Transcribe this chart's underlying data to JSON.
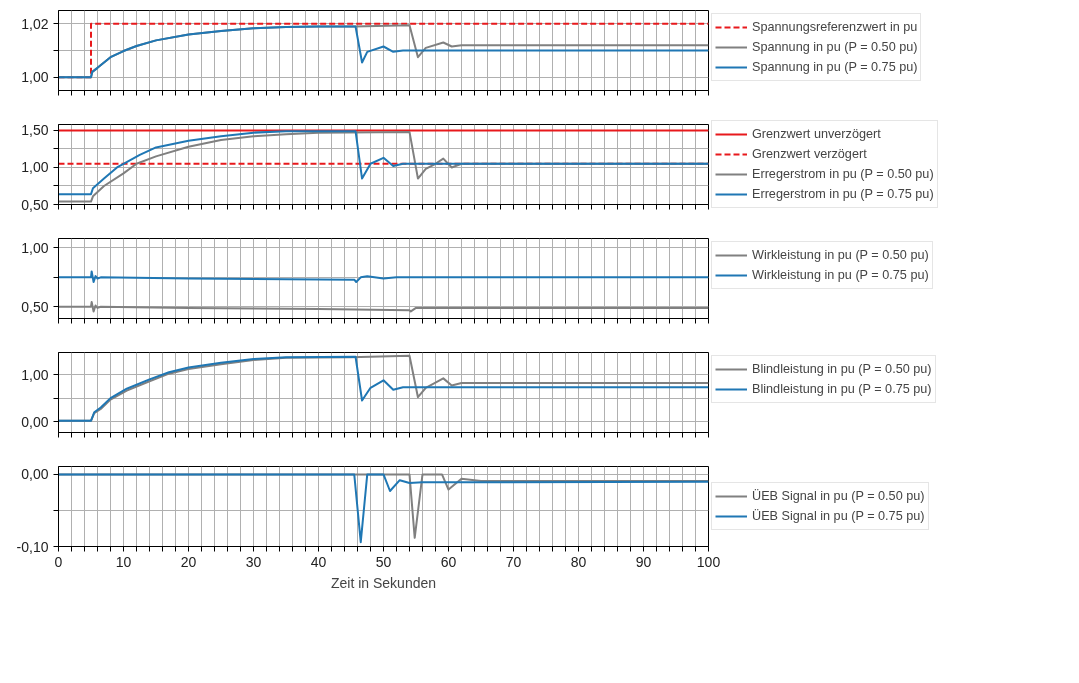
{
  "chart_data": [
    {
      "type": "line",
      "xlim": [
        0,
        100
      ],
      "ylim": [
        0.995,
        1.025
      ],
      "yticks": [
        {
          "value": 1.0,
          "label": "1,00"
        },
        {
          "value": 1.01,
          "label": null
        },
        {
          "value": 1.02,
          "label": "1,02"
        }
      ],
      "xticks": [
        0,
        {
          "value": 2,
          "label": null
        },
        {
          "value": 4,
          "label": null
        },
        {
          "value": 6,
          "label": null
        },
        {
          "value": 8,
          "label": null
        },
        10,
        {
          "value": 12,
          "label": null
        },
        {
          "value": 14,
          "label": null
        },
        {
          "value": 16,
          "label": null
        },
        {
          "value": 18,
          "label": null
        },
        20,
        {
          "value": 22,
          "label": null
        },
        {
          "value": 24,
          "label": null
        },
        {
          "value": 26,
          "label": null
        },
        {
          "value": 28,
          "label": null
        },
        30,
        {
          "value": 32,
          "label": null
        },
        {
          "value": 34,
          "label": null
        },
        {
          "value": 36,
          "label": null
        },
        {
          "value": 38,
          "label": null
        },
        40,
        {
          "value": 42,
          "label": null
        },
        {
          "value": 44,
          "label": null
        },
        {
          "value": 46,
          "label": null
        },
        {
          "value": 48,
          "label": null
        },
        50,
        {
          "value": 52,
          "label": null
        },
        {
          "value": 54,
          "label": null
        },
        {
          "value": 56,
          "label": null
        },
        {
          "value": 58,
          "label": null
        },
        60,
        {
          "value": 62,
          "label": null
        },
        {
          "value": 64,
          "label": null
        },
        {
          "value": 66,
          "label": null
        },
        {
          "value": 68,
          "label": null
        },
        70,
        {
          "value": 72,
          "label": null
        },
        {
          "value": 74,
          "label": null
        },
        {
          "value": 76,
          "label": null
        },
        {
          "value": 78,
          "label": null
        },
        80,
        {
          "value": 82,
          "label": null
        },
        {
          "value": 84,
          "label": null
        },
        {
          "value": 86,
          "label": null
        },
        {
          "value": 88,
          "label": null
        },
        90,
        {
          "value": 92,
          "label": null
        },
        {
          "value": 94,
          "label": null
        },
        {
          "value": 96,
          "label": null
        },
        {
          "value": 98,
          "label": null
        },
        100
      ],
      "tick_labels": "y",
      "grid": true,
      "legend": "top right",
      "series": [
        {
          "name": "Spannungsreferenzwert in pu",
          "color": "#e8191c",
          "line_style": "dashed",
          "x": [
            0,
            5,
            5,
            100
          ],
          "values": [
            1.0,
            1.0,
            1.02,
            1.02
          ]
        },
        {
          "name": "Spannung in pu (P = 0.50 pu)",
          "color": "#808080",
          "x": [
            0,
            5,
            5.2,
            6,
            8,
            10,
            12,
            15,
            20,
            25,
            30,
            35,
            40,
            45.5,
            54,
            55.3,
            56.5,
            59.2,
            60.5,
            62,
            100
          ],
          "values": [
            1.0,
            1.0,
            1.002,
            1.0035,
            1.0075,
            1.0098,
            1.0117,
            1.0138,
            1.016,
            1.0173,
            1.0183,
            1.0188,
            1.019,
            1.019,
            1.0195,
            1.0075,
            1.011,
            1.013,
            1.0115,
            1.012,
            1.012
          ]
        },
        {
          "name": "Spannung in pu (P = 0.75 pu)",
          "color": "#1f77b4",
          "x": [
            0,
            5,
            5.2,
            6,
            8,
            10,
            12,
            15,
            20,
            25,
            30,
            35,
            40,
            45.7,
            46.7,
            47.5,
            50,
            51.5,
            53,
            100
          ],
          "values": [
            1.0,
            1.0,
            1.002,
            1.0035,
            1.0075,
            1.0098,
            1.0117,
            1.0138,
            1.016,
            1.0173,
            1.0183,
            1.0188,
            1.019,
            1.019,
            1.0055,
            1.0095,
            1.0115,
            1.0095,
            1.01,
            1.01
          ]
        }
      ]
    },
    {
      "type": "line",
      "xlim": [
        0,
        100
      ],
      "ylim": [
        0.5,
        1.58
      ],
      "yticks": [
        {
          "value": 0.5,
          "label": "0,50"
        },
        {
          "value": 0.75,
          "label": null
        },
        {
          "value": 1.0,
          "label": "1,00"
        },
        {
          "value": 1.25,
          "label": null
        },
        {
          "value": 1.5,
          "label": "1,50"
        }
      ],
      "xticks": [
        0,
        {
          "value": 2,
          "label": null
        },
        {
          "value": 4,
          "label": null
        },
        {
          "value": 6,
          "label": null
        },
        {
          "value": 8,
          "label": null
        },
        10,
        {
          "value": 12,
          "label": null
        },
        {
          "value": 14,
          "label": null
        },
        {
          "value": 16,
          "label": null
        },
        {
          "value": 18,
          "label": null
        },
        20,
        {
          "value": 22,
          "label": null
        },
        {
          "value": 24,
          "label": null
        },
        {
          "value": 26,
          "label": null
        },
        {
          "value": 28,
          "label": null
        },
        30,
        {
          "value": 32,
          "label": null
        },
        {
          "value": 34,
          "label": null
        },
        {
          "value": 36,
          "label": null
        },
        {
          "value": 38,
          "label": null
        },
        40,
        {
          "value": 42,
          "label": null
        },
        {
          "value": 44,
          "label": null
        },
        {
          "value": 46,
          "label": null
        },
        {
          "value": 48,
          "label": null
        },
        50,
        {
          "value": 52,
          "label": null
        },
        {
          "value": 54,
          "label": null
        },
        {
          "value": 56,
          "label": null
        },
        {
          "value": 58,
          "label": null
        },
        60,
        {
          "value": 62,
          "label": null
        },
        {
          "value": 64,
          "label": null
        },
        {
          "value": 66,
          "label": null
        },
        {
          "value": 68,
          "label": null
        },
        70,
        {
          "value": 72,
          "label": null
        },
        {
          "value": 74,
          "label": null
        },
        {
          "value": 76,
          "label": null
        },
        {
          "value": 78,
          "label": null
        },
        80,
        {
          "value": 82,
          "label": null
        },
        {
          "value": 84,
          "label": null
        },
        {
          "value": 86,
          "label": null
        },
        {
          "value": 88,
          "label": null
        },
        90,
        {
          "value": 92,
          "label": null
        },
        {
          "value": 94,
          "label": null
        },
        {
          "value": 96,
          "label": null
        },
        {
          "value": 98,
          "label": null
        },
        100
      ],
      "tick_labels": "y",
      "grid": true,
      "legend": "right",
      "series": [
        {
          "name": "Grenzwert unverzögert",
          "color": "#e8191c",
          "x": [
            0,
            100
          ],
          "values": [
            1.5,
            1.5
          ]
        },
        {
          "name": "Grenzwert verzögert",
          "color": "#e8191c",
          "line_style": "dashed",
          "x": [
            0,
            100
          ],
          "values": [
            1.05,
            1.05
          ]
        },
        {
          "name": "Erregerstrom in pu (P = 0.50 pu)",
          "color": "#808080",
          "x": [
            0,
            5,
            5.3,
            7,
            10,
            12,
            15,
            20,
            25,
            30,
            35,
            40,
            54,
            55.3,
            56.5,
            58,
            59.2,
            60.5,
            62,
            100
          ],
          "values": [
            0.54,
            0.54,
            0.61,
            0.75,
            0.92,
            1.05,
            1.15,
            1.28,
            1.37,
            1.42,
            1.45,
            1.47,
            1.48,
            0.85,
            0.98,
            1.05,
            1.12,
            1.0,
            1.05,
            1.05
          ]
        },
        {
          "name": "Erregerstrom in pu (P = 0.75 pu)",
          "color": "#1f77b4",
          "x": [
            0,
            5,
            5.3,
            7,
            9,
            10,
            12.5,
            15,
            20,
            25,
            30,
            35,
            45.7,
            46.7,
            48,
            50,
            51.5,
            53,
            100
          ],
          "values": [
            0.64,
            0.64,
            0.72,
            0.85,
            1.0,
            1.05,
            1.17,
            1.27,
            1.36,
            1.42,
            1.47,
            1.49,
            1.49,
            0.85,
            1.05,
            1.13,
            1.02,
            1.05,
            1.05
          ]
        }
      ]
    },
    {
      "type": "line",
      "xlim": [
        0,
        100
      ],
      "ylim": [
        0.4,
        1.08
      ],
      "yticks": [
        {
          "value": 0.5,
          "label": "0,50"
        },
        {
          "value": 0.75,
          "label": null
        },
        {
          "value": 1.0,
          "label": "1,00"
        }
      ],
      "xticks": [
        0,
        {
          "value": 2,
          "label": null
        },
        {
          "value": 4,
          "label": null
        },
        {
          "value": 6,
          "label": null
        },
        {
          "value": 8,
          "label": null
        },
        10,
        {
          "value": 12,
          "label": null
        },
        {
          "value": 14,
          "label": null
        },
        {
          "value": 16,
          "label": null
        },
        {
          "value": 18,
          "label": null
        },
        20,
        {
          "value": 22,
          "label": null
        },
        {
          "value": 24,
          "label": null
        },
        {
          "value": 26,
          "label": null
        },
        {
          "value": 28,
          "label": null
        },
        30,
        {
          "value": 32,
          "label": null
        },
        {
          "value": 34,
          "label": null
        },
        {
          "value": 36,
          "label": null
        },
        {
          "value": 38,
          "label": null
        },
        40,
        {
          "value": 42,
          "label": null
        },
        {
          "value": 44,
          "label": null
        },
        {
          "value": 46,
          "label": null
        },
        {
          "value": 48,
          "label": null
        },
        50,
        {
          "value": 52,
          "label": null
        },
        {
          "value": 54,
          "label": null
        },
        {
          "value": 56,
          "label": null
        },
        {
          "value": 58,
          "label": null
        },
        60,
        {
          "value": 62,
          "label": null
        },
        {
          "value": 64,
          "label": null
        },
        {
          "value": 66,
          "label": null
        },
        {
          "value": 68,
          "label": null
        },
        70,
        {
          "value": 72,
          "label": null
        },
        {
          "value": 74,
          "label": null
        },
        {
          "value": 76,
          "label": null
        },
        {
          "value": 78,
          "label": null
        },
        80,
        {
          "value": 82,
          "label": null
        },
        {
          "value": 84,
          "label": null
        },
        {
          "value": 86,
          "label": null
        },
        {
          "value": 88,
          "label": null
        },
        90,
        {
          "value": 92,
          "label": null
        },
        {
          "value": 94,
          "label": null
        },
        {
          "value": 96,
          "label": null
        },
        {
          "value": 98,
          "label": null
        },
        100
      ],
      "tick_labels": "y",
      "grid": true,
      "legend": "top right",
      "series": [
        {
          "name": "Wirkleistung in pu (P = 0.50 pu)",
          "color": "#808080",
          "x": [
            0,
            5,
            5.1,
            5.4,
            5.7,
            6,
            6.5,
            20,
            40,
            54,
            54.2,
            55,
            100
          ],
          "values": [
            0.5,
            0.5,
            0.54,
            0.46,
            0.51,
            0.49,
            0.5,
            0.49,
            0.48,
            0.47,
            0.46,
            0.49,
            0.49
          ]
        },
        {
          "name": "Wirkleistung in pu (P = 0.75 pu)",
          "color": "#1f77b4",
          "x": [
            0,
            5,
            5.1,
            5.4,
            5.7,
            6,
            6.5,
            20,
            45.5,
            45.8,
            46.5,
            47.5,
            50,
            52,
            100
          ],
          "values": [
            0.75,
            0.75,
            0.8,
            0.71,
            0.76,
            0.74,
            0.75,
            0.74,
            0.73,
            0.71,
            0.75,
            0.76,
            0.74,
            0.75,
            0.75
          ]
        }
      ]
    },
    {
      "type": "line",
      "xlim": [
        0,
        100
      ],
      "ylim": [
        -0.23,
        1.47
      ],
      "yticks": [
        {
          "value": 0.0,
          "label": "0,00"
        },
        {
          "value": 0.5,
          "label": null
        },
        {
          "value": 1.0,
          "label": "1,00"
        }
      ],
      "xticks": [
        0,
        {
          "value": 2,
          "label": null
        },
        {
          "value": 4,
          "label": null
        },
        {
          "value": 6,
          "label": null
        },
        {
          "value": 8,
          "label": null
        },
        10,
        {
          "value": 12,
          "label": null
        },
        {
          "value": 14,
          "label": null
        },
        {
          "value": 16,
          "label": null
        },
        {
          "value": 18,
          "label": null
        },
        20,
        {
          "value": 22,
          "label": null
        },
        {
          "value": 24,
          "label": null
        },
        {
          "value": 26,
          "label": null
        },
        {
          "value": 28,
          "label": null
        },
        30,
        {
          "value": 32,
          "label": null
        },
        {
          "value": 34,
          "label": null
        },
        {
          "value": 36,
          "label": null
        },
        {
          "value": 38,
          "label": null
        },
        40,
        {
          "value": 42,
          "label": null
        },
        {
          "value": 44,
          "label": null
        },
        {
          "value": 46,
          "label": null
        },
        {
          "value": 48,
          "label": null
        },
        50,
        {
          "value": 52,
          "label": null
        },
        {
          "value": 54,
          "label": null
        },
        {
          "value": 56,
          "label": null
        },
        {
          "value": 58,
          "label": null
        },
        60,
        {
          "value": 62,
          "label": null
        },
        {
          "value": 64,
          "label": null
        },
        {
          "value": 66,
          "label": null
        },
        {
          "value": 68,
          "label": null
        },
        70,
        {
          "value": 72,
          "label": null
        },
        {
          "value": 74,
          "label": null
        },
        {
          "value": 76,
          "label": null
        },
        {
          "value": 78,
          "label": null
        },
        80,
        {
          "value": 82,
          "label": null
        },
        {
          "value": 84,
          "label": null
        },
        {
          "value": 86,
          "label": null
        },
        {
          "value": 88,
          "label": null
        },
        90,
        {
          "value": 92,
          "label": null
        },
        {
          "value": 94,
          "label": null
        },
        {
          "value": 96,
          "label": null
        },
        {
          "value": 98,
          "label": null
        },
        100
      ],
      "tick_labels": "y",
      "grid": true,
      "legend": "top right",
      "series": [
        {
          "name": "Blindleistung in pu (P = 0.50 pu)",
          "color": "#808080",
          "x": [
            0,
            5,
            5.5,
            6.5,
            8,
            10.5,
            14,
            17,
            20,
            25,
            30,
            35,
            45,
            54,
            55.3,
            56.5,
            59.2,
            60.5,
            62,
            100
          ],
          "values": [
            0.02,
            0.02,
            0.18,
            0.27,
            0.47,
            0.66,
            0.86,
            1.02,
            1.12,
            1.22,
            1.31,
            1.36,
            1.37,
            1.4,
            0.52,
            0.72,
            0.92,
            0.77,
            0.82,
            0.82
          ]
        },
        {
          "name": "Blindleistung in pu (P = 0.75 pu)",
          "color": "#1f77b4",
          "x": [
            0,
            5,
            5.5,
            6.5,
            8,
            10.5,
            14,
            17,
            20,
            25,
            30,
            35,
            45.7,
            46.7,
            48,
            50,
            51.5,
            53,
            100
          ],
          "values": [
            0.02,
            0.02,
            0.2,
            0.3,
            0.5,
            0.7,
            0.9,
            1.05,
            1.15,
            1.25,
            1.33,
            1.37,
            1.38,
            0.45,
            0.72,
            0.88,
            0.68,
            0.73,
            0.73
          ]
        }
      ]
    },
    {
      "type": "line",
      "xlim": [
        0,
        100
      ],
      "ylim": [
        -0.1,
        0.011
      ],
      "xlabel": "Zeit in Sekunden",
      "yticks": [
        {
          "value": -0.1,
          "label": "-0,10"
        },
        {
          "value": -0.05,
          "label": null
        },
        {
          "value": 0.0,
          "label": "0,00"
        }
      ],
      "xticks": [
        0,
        {
          "value": 2,
          "label": null
        },
        {
          "value": 4,
          "label": null
        },
        {
          "value": 6,
          "label": null
        },
        {
          "value": 8,
          "label": null
        },
        10,
        {
          "value": 12,
          "label": null
        },
        {
          "value": 14,
          "label": null
        },
        {
          "value": 16,
          "label": null
        },
        {
          "value": 18,
          "label": null
        },
        20,
        {
          "value": 22,
          "label": null
        },
        {
          "value": 24,
          "label": null
        },
        {
          "value": 26,
          "label": null
        },
        {
          "value": 28,
          "label": null
        },
        30,
        {
          "value": 32,
          "label": null
        },
        {
          "value": 34,
          "label": null
        },
        {
          "value": 36,
          "label": null
        },
        {
          "value": 38,
          "label": null
        },
        40,
        {
          "value": 42,
          "label": null
        },
        {
          "value": 44,
          "label": null
        },
        {
          "value": 46,
          "label": null
        },
        {
          "value": 48,
          "label": null
        },
        50,
        {
          "value": 52,
          "label": null
        },
        {
          "value": 54,
          "label": null
        },
        {
          "value": 56,
          "label": null
        },
        {
          "value": 58,
          "label": null
        },
        60,
        {
          "value": 62,
          "label": null
        },
        {
          "value": 64,
          "label": null
        },
        {
          "value": 66,
          "label": null
        },
        {
          "value": 68,
          "label": null
        },
        70,
        {
          "value": 72,
          "label": null
        },
        {
          "value": 74,
          "label": null
        },
        {
          "value": 76,
          "label": null
        },
        {
          "value": 78,
          "label": null
        },
        80,
        {
          "value": 82,
          "label": null
        },
        {
          "value": 84,
          "label": null
        },
        {
          "value": 86,
          "label": null
        },
        {
          "value": 88,
          "label": null
        },
        90,
        {
          "value": 92,
          "label": null
        },
        {
          "value": 94,
          "label": null
        },
        {
          "value": 96,
          "label": null
        },
        {
          "value": 98,
          "label": null
        },
        100
      ],
      "grid": true,
      "legend": "right",
      "series": [
        {
          "name": "ÜEB Signal in pu (P = 0.50 pu)",
          "color": "#808080",
          "x": [
            0,
            54,
            54.8,
            56,
            59,
            60,
            62,
            65,
            100
          ],
          "values": [
            0.0,
            0.0,
            -0.088,
            0.0,
            0.0,
            -0.021,
            -0.006,
            -0.009,
            -0.009
          ]
        },
        {
          "name": "ÜEB Signal in pu (P = 0.75 pu)",
          "color": "#1f77b4",
          "x": [
            0,
            45.5,
            46.5,
            47.5,
            50,
            51,
            52.5,
            54,
            56,
            100
          ],
          "values": [
            0.0,
            0.0,
            -0.094,
            0.0,
            0.0,
            -0.023,
            -0.008,
            -0.012,
            -0.011,
            -0.01
          ]
        }
      ]
    }
  ]
}
